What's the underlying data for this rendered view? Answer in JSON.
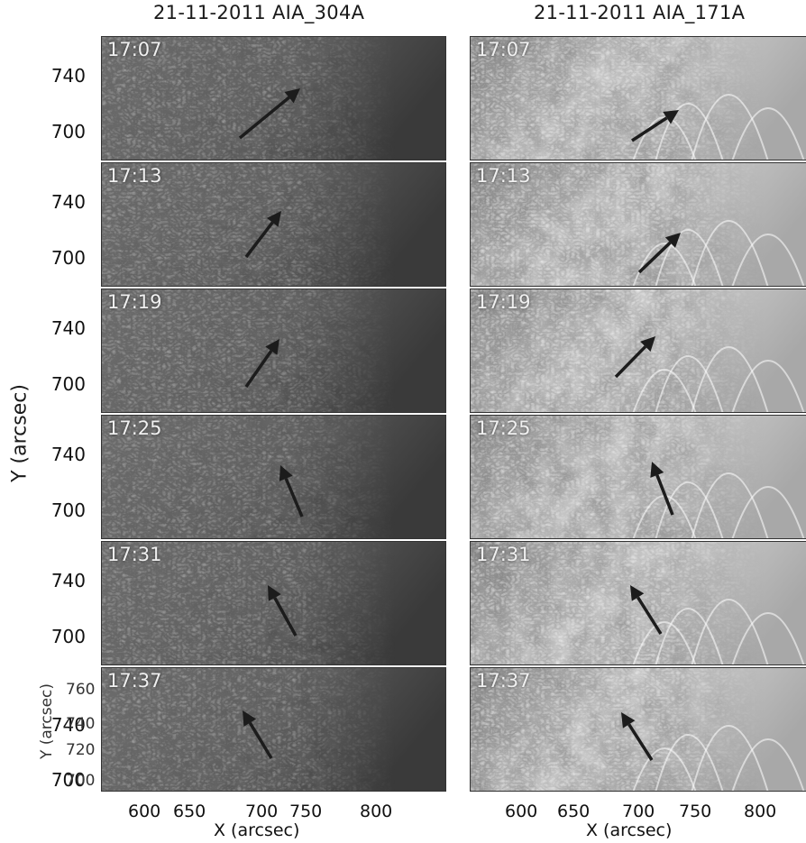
{
  "titles": {
    "left": "21-11-2011 AIA_304A",
    "right": "21-11-2011 AIA_171A"
  },
  "times": [
    "17:07",
    "17:13",
    "17:19",
    "17:25",
    "17:31",
    "17:37"
  ],
  "y_axis": {
    "label": "Y (arcsec)",
    "ticks": [
      "740",
      "700"
    ],
    "bottom_panel_label": "Y (arcsec)",
    "bottom_panel_ticks": [
      "760",
      "740",
      "720",
      "700"
    ]
  },
  "x_axis": {
    "label": "X (arcsec)",
    "ticks": [
      "600",
      "650",
      "700",
      "750",
      "800"
    ]
  },
  "colors": {
    "arrow": "#1c1c1c",
    "frame": "#333333"
  }
}
